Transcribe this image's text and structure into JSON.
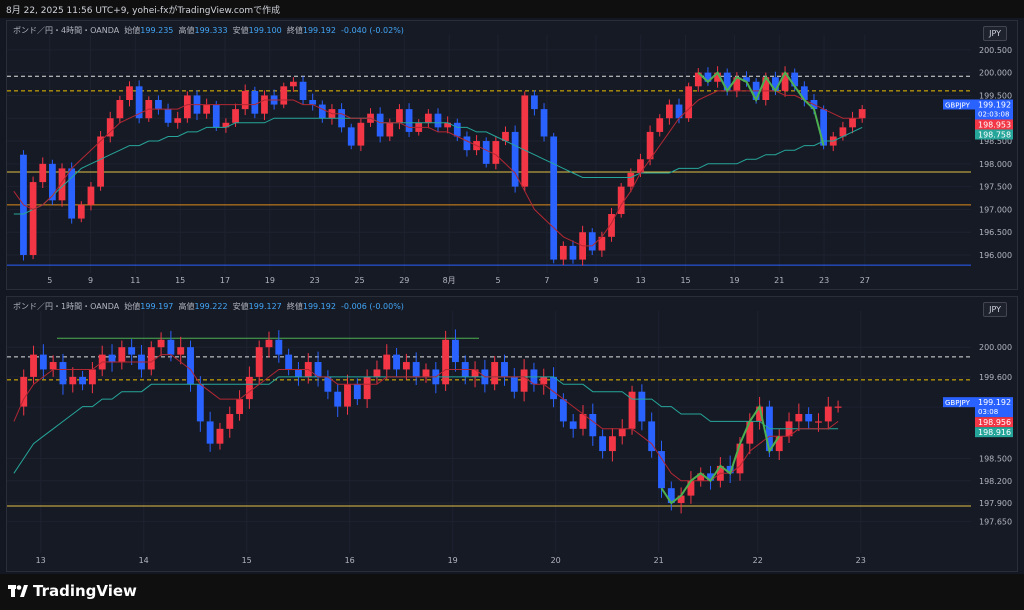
{
  "header": {
    "caption": "8月 22, 2025 11:56 UTC+9,  yohei-fxがTradingView.comで作成"
  },
  "footer": {
    "brand": "TradingView"
  },
  "colors": {
    "up": "#f23645",
    "down": "#2962ff",
    "ma_fast": "#b22833",
    "ma_slow": "#26a69a",
    "wave": "#4caf50"
  },
  "chart_data": [
    {
      "type": "candlestick",
      "symbol": "GBPJPY",
      "legend": {
        "name": "ポンド／円・4時間・OANDA",
        "open_label": "始値",
        "open": "199.235",
        "high_label": "高値",
        "high": "199.333",
        "low_label": "安値",
        "low": "199.100",
        "close_label": "終値",
        "close": "199.192",
        "change": "-0.040 (-0.02%)"
      },
      "currency": "JPY",
      "y_ticks": [
        "200.500",
        "200.000",
        "199.500",
        "199.000",
        "198.500",
        "198.000",
        "197.500",
        "197.000",
        "196.500",
        "196.000"
      ],
      "ylim": [
        195.65,
        200.65
      ],
      "x_ticks": [
        "5",
        "9",
        "11",
        "15",
        "17",
        "19",
        "23",
        "25",
        "29",
        "8月",
        "5",
        "7",
        "9",
        "13",
        "15",
        "19",
        "21",
        "23",
        "27"
      ],
      "price_labels": [
        {
          "label": "GBPJPY",
          "value": "199.192",
          "sub": "02:03:08",
          "color": "#2962ff"
        },
        {
          "label": "",
          "value": "198.953",
          "sub": "",
          "color": "#f23645"
        },
        {
          "label": "",
          "value": "198.758",
          "sub": "",
          "color": "#26a69a"
        }
      ],
      "levels": [
        {
          "value": 199.92,
          "style": "dashed",
          "color": "#e0e0e0"
        },
        {
          "value": 199.6,
          "style": "dashed",
          "color": "#f0c000"
        },
        {
          "value": 197.82,
          "style": "solid",
          "color": "#e3c043"
        },
        {
          "value": 197.1,
          "style": "solid",
          "color": "#e08a1a"
        },
        {
          "value": 195.78,
          "style": "solid",
          "color": "#2962ff"
        }
      ],
      "path": [
        198.2,
        196.0,
        197.6,
        198.0,
        197.2,
        197.9,
        196.8,
        197.1,
        197.5,
        198.6,
        199.0,
        199.4,
        199.7,
        199.0,
        199.4,
        199.2,
        198.9,
        199.0,
        199.5,
        199.1,
        199.3,
        198.8,
        198.9,
        199.2,
        199.6,
        199.1,
        199.5,
        199.3,
        199.7,
        199.8,
        199.4,
        199.3,
        199.0,
        199.2,
        198.8,
        198.4,
        198.9,
        199.1,
        198.6,
        198.9,
        199.2,
        198.7,
        198.9,
        199.1,
        198.8,
        198.9,
        198.6,
        198.3,
        198.5,
        198.0,
        198.5,
        198.7,
        197.5,
        199.5,
        199.2,
        198.6,
        195.9,
        196.2,
        195.9,
        196.5,
        196.1,
        196.4,
        196.9,
        197.5,
        197.8,
        198.1,
        198.7,
        199.0,
        199.3,
        199.0,
        199.7,
        200.0,
        199.8,
        200.0,
        199.6,
        199.9,
        199.8,
        199.4,
        199.9,
        199.6,
        200.0,
        199.7,
        199.4,
        199.2,
        198.4,
        198.6,
        198.8,
        199.0,
        199.2
      ],
      "ma_fast": [
        197.4,
        197.1,
        197.0,
        197.1,
        197.3,
        197.6,
        197.9,
        198.1,
        198.3,
        198.5,
        198.7,
        198.9,
        199.0,
        199.1,
        199.2,
        199.2,
        199.2,
        199.2,
        199.3,
        199.3,
        199.3,
        199.3,
        199.3,
        199.3,
        199.3,
        199.3,
        199.4,
        199.4,
        199.4,
        199.4,
        199.3,
        199.3,
        199.2,
        199.1,
        199.1,
        199.0,
        199.0,
        199.0,
        198.9,
        198.9,
        198.9,
        198.8,
        198.8,
        198.8,
        198.7,
        198.7,
        198.6,
        198.5,
        198.4,
        198.3,
        198.2,
        198.0,
        197.8,
        197.4,
        197.0,
        196.8,
        196.6,
        196.4,
        196.3,
        196.2,
        196.2,
        196.4,
        196.7,
        197.1,
        197.4,
        197.8,
        198.1,
        198.4,
        198.7,
        199.0,
        199.2,
        199.4,
        199.5,
        199.6,
        199.6,
        199.6,
        199.6,
        199.6,
        199.6,
        199.6,
        199.5,
        199.5,
        199.4,
        199.3,
        199.2,
        199.1,
        199.0,
        199.0,
        199.0
      ],
      "ma_slow": [
        196.9,
        196.9,
        197.0,
        197.1,
        197.3,
        197.5,
        197.7,
        197.9,
        198.0,
        198.1,
        198.2,
        198.3,
        198.4,
        198.4,
        198.5,
        198.5,
        198.6,
        198.6,
        198.7,
        198.7,
        198.8,
        198.8,
        198.8,
        198.9,
        198.9,
        198.9,
        198.9,
        199.0,
        199.0,
        199.0,
        199.0,
        199.0,
        199.0,
        199.0,
        199.0,
        199.0,
        199.0,
        199.0,
        198.9,
        198.9,
        198.9,
        198.9,
        198.9,
        198.9,
        198.9,
        198.9,
        198.8,
        198.8,
        198.7,
        198.7,
        198.6,
        198.5,
        198.4,
        198.3,
        198.2,
        198.1,
        198.0,
        197.9,
        197.8,
        197.7,
        197.7,
        197.7,
        197.7,
        197.7,
        197.7,
        197.8,
        197.8,
        197.8,
        197.8,
        197.9,
        197.9,
        197.9,
        198.0,
        198.0,
        198.0,
        198.0,
        198.1,
        198.1,
        198.2,
        198.2,
        198.3,
        198.3,
        198.4,
        198.4,
        198.5,
        198.5,
        198.6,
        198.7,
        198.8
      ]
    },
    {
      "type": "candlestick",
      "symbol": "GBPJPY",
      "legend": {
        "name": "ポンド／円・1時間・OANDA",
        "open_label": "始値",
        "open": "199.197",
        "high_label": "高値",
        "high": "199.222",
        "low_label": "安値",
        "low": "199.127",
        "close_label": "終値",
        "close": "199.192",
        "change": "-0.006 (-0.00%)"
      },
      "currency": "JPY",
      "y_ticks": [
        "200.000",
        "199.600",
        "199.192",
        "198.500",
        "198.200",
        "197.900",
        "197.650"
      ],
      "ylim": [
        197.55,
        200.38
      ],
      "x_ticks": [
        "13",
        "14",
        "15",
        "16",
        "19",
        "20",
        "21",
        "22",
        "23"
      ],
      "price_labels": [
        {
          "label": "GBPJPY",
          "value": "199.192",
          "sub": "03:08",
          "color": "#2962ff"
        },
        {
          "label": "",
          "value": "198.956",
          "sub": "",
          "color": "#f23645"
        },
        {
          "label": "",
          "value": "198.916",
          "sub": "",
          "color": "#26a69a"
        }
      ],
      "levels": [
        {
          "value": 200.12,
          "style": "solid",
          "color": "#4caf50"
        },
        {
          "value": 199.87,
          "style": "dashed",
          "color": "#e0e0e0"
        },
        {
          "value": 199.56,
          "style": "dashed",
          "color": "#f0c000"
        },
        {
          "value": 197.86,
          "style": "solid",
          "color": "#e3c043"
        }
      ],
      "path": [
        199.2,
        199.6,
        199.9,
        199.7,
        199.8,
        199.5,
        199.6,
        199.5,
        199.7,
        199.9,
        199.8,
        200.0,
        199.9,
        199.7,
        200.0,
        200.1,
        199.9,
        200.0,
        199.5,
        199.0,
        198.7,
        198.9,
        199.1,
        199.3,
        199.6,
        200.0,
        200.1,
        199.9,
        199.7,
        199.6,
        199.8,
        199.6,
        199.4,
        199.2,
        199.5,
        199.3,
        199.6,
        199.7,
        199.9,
        199.7,
        199.8,
        199.6,
        199.7,
        199.5,
        200.1,
        199.8,
        199.6,
        199.7,
        199.5,
        199.8,
        199.6,
        199.4,
        199.7,
        199.5,
        199.6,
        199.3,
        199.0,
        198.9,
        199.1,
        198.8,
        198.6,
        198.8,
        198.9,
        199.4,
        199.0,
        198.6,
        198.1,
        197.9,
        198.0,
        198.2,
        198.3,
        198.2,
        198.4,
        198.3,
        198.7,
        199.0,
        199.2,
        198.6,
        198.8,
        199.0,
        199.1,
        199.0,
        199.0,
        199.2,
        199.2
      ],
      "ma_fast": [
        199.0,
        199.3,
        199.5,
        199.6,
        199.7,
        199.7,
        199.7,
        199.7,
        199.7,
        199.8,
        199.8,
        199.8,
        199.8,
        199.8,
        199.8,
        199.9,
        199.9,
        199.8,
        199.7,
        199.5,
        199.4,
        199.3,
        199.3,
        199.3,
        199.4,
        199.5,
        199.6,
        199.7,
        199.7,
        199.7,
        199.7,
        199.6,
        199.6,
        199.5,
        199.5,
        199.5,
        199.5,
        199.5,
        199.6,
        199.6,
        199.6,
        199.6,
        199.6,
        199.6,
        199.7,
        199.7,
        199.7,
        199.7,
        199.6,
        199.6,
        199.6,
        199.6,
        199.6,
        199.5,
        199.5,
        199.4,
        199.3,
        199.2,
        199.1,
        199.0,
        198.9,
        198.9,
        198.9,
        198.9,
        198.8,
        198.7,
        198.5,
        198.3,
        198.2,
        198.2,
        198.2,
        198.2,
        198.3,
        198.3,
        198.4,
        198.6,
        198.7,
        198.8,
        198.8,
        198.8,
        198.9,
        198.9,
        198.9,
        198.9,
        199.0
      ],
      "ma_slow": [
        198.3,
        198.5,
        198.7,
        198.8,
        198.9,
        199.0,
        199.1,
        199.2,
        199.2,
        199.3,
        199.3,
        199.4,
        199.4,
        199.4,
        199.5,
        199.5,
        199.5,
        199.5,
        199.5,
        199.5,
        199.5,
        199.5,
        199.5,
        199.5,
        199.5,
        199.5,
        199.5,
        199.6,
        199.6,
        199.6,
        199.6,
        199.6,
        199.6,
        199.6,
        199.6,
        199.6,
        199.6,
        199.6,
        199.6,
        199.6,
        199.6,
        199.6,
        199.6,
        199.6,
        199.6,
        199.6,
        199.6,
        199.6,
        199.6,
        199.6,
        199.6,
        199.6,
        199.6,
        199.6,
        199.6,
        199.6,
        199.5,
        199.5,
        199.5,
        199.4,
        199.4,
        199.4,
        199.4,
        199.3,
        199.3,
        199.3,
        199.2,
        199.2,
        199.1,
        199.1,
        199.1,
        199.0,
        199.0,
        199.0,
        199.0,
        199.0,
        199.0,
        198.9,
        198.9,
        198.9,
        198.9,
        198.9,
        198.9,
        198.9,
        198.9
      ]
    }
  ]
}
